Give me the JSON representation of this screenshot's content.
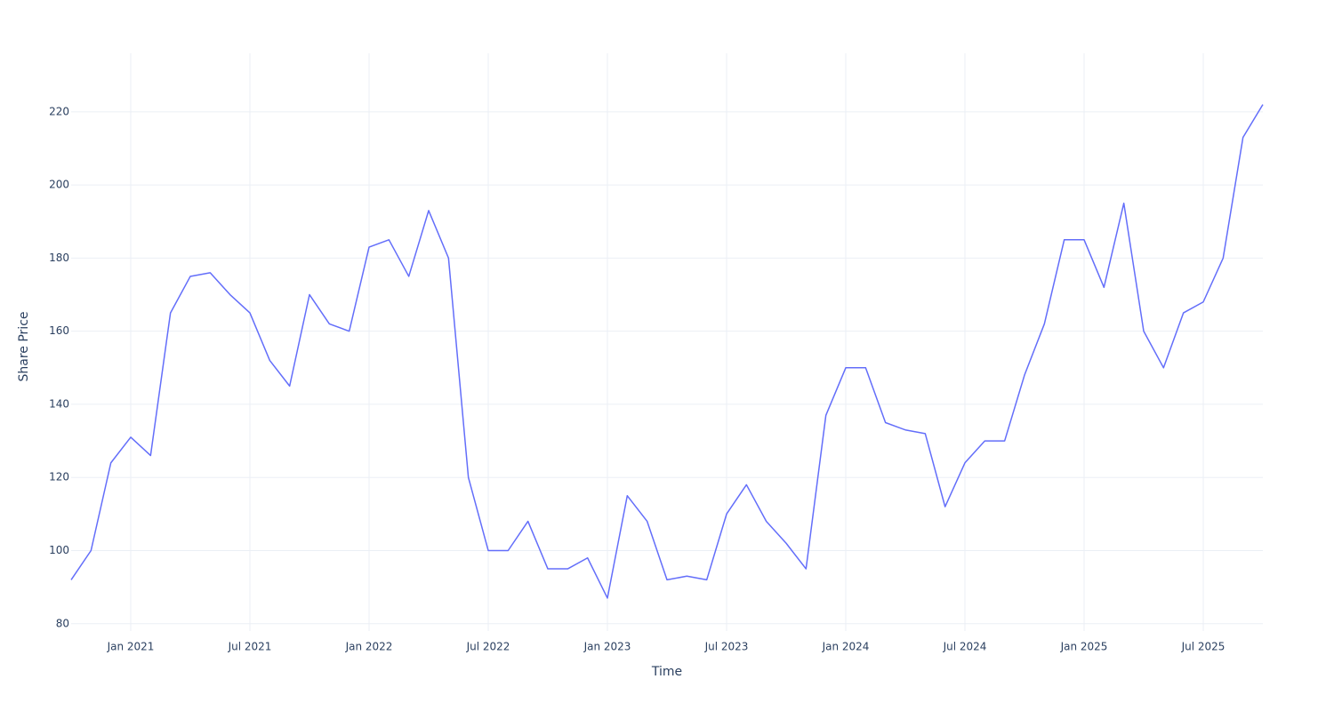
{
  "chart_data": {
    "type": "line",
    "x_label": "Time",
    "y_label": "Share Price",
    "x": [
      "2020-10",
      "2020-11",
      "2020-12",
      "2021-01",
      "2021-02",
      "2021-03",
      "2021-04",
      "2021-05",
      "2021-06",
      "2021-07",
      "2021-08",
      "2021-09",
      "2021-10",
      "2021-11",
      "2021-12",
      "2022-01",
      "2022-02",
      "2022-03",
      "2022-04",
      "2022-05",
      "2022-06",
      "2022-07",
      "2022-08",
      "2022-09",
      "2022-10",
      "2022-11",
      "2022-12",
      "2023-01",
      "2023-02",
      "2023-03",
      "2023-04",
      "2023-05",
      "2023-06",
      "2023-07",
      "2023-08",
      "2023-09",
      "2023-10",
      "2023-11",
      "2023-12",
      "2024-01",
      "2024-02",
      "2024-03",
      "2024-04",
      "2024-05",
      "2024-06",
      "2024-07",
      "2024-08",
      "2024-09",
      "2024-10",
      "2024-11",
      "2024-12",
      "2025-01",
      "2025-02",
      "2025-03",
      "2025-04",
      "2025-05",
      "2025-06",
      "2025-07",
      "2025-08",
      "2025-09",
      "2025-10"
    ],
    "series": [
      {
        "name": "Share Price",
        "color": "#636efa",
        "values": [
          92,
          100,
          124,
          131,
          126,
          165,
          175,
          176,
          170,
          165,
          152,
          145,
          170,
          162,
          160,
          183,
          185,
          175,
          193,
          180,
          120,
          100,
          100,
          108,
          95,
          95,
          98,
          87,
          115,
          108,
          92,
          93,
          92,
          110,
          118,
          108,
          102,
          95,
          137,
          150,
          150,
          135,
          133,
          132,
          112,
          124,
          130,
          130,
          148,
          162,
          185,
          185,
          172,
          195,
          160,
          150,
          165,
          168,
          180,
          213,
          222
        ]
      }
    ],
    "xlim": [
      "2020-10",
      "2025-10"
    ],
    "xticks": [
      {
        "value": "2021-01",
        "label": "Jan 2021"
      },
      {
        "value": "2021-07",
        "label": "Jul 2021"
      },
      {
        "value": "2022-01",
        "label": "Jan 2022"
      },
      {
        "value": "2022-07",
        "label": "Jul 2022"
      },
      {
        "value": "2023-01",
        "label": "Jan 2023"
      },
      {
        "value": "2023-07",
        "label": "Jul 2023"
      },
      {
        "value": "2024-01",
        "label": "Jan 2024"
      },
      {
        "value": "2024-07",
        "label": "Jul 2024"
      },
      {
        "value": "2025-01",
        "label": "Jan 2025"
      },
      {
        "value": "2025-07",
        "label": "Jul 2025"
      }
    ],
    "ylim": [
      78,
      236
    ],
    "yticks": [
      80,
      100,
      120,
      140,
      160,
      180,
      200,
      220
    ],
    "grid": true
  }
}
